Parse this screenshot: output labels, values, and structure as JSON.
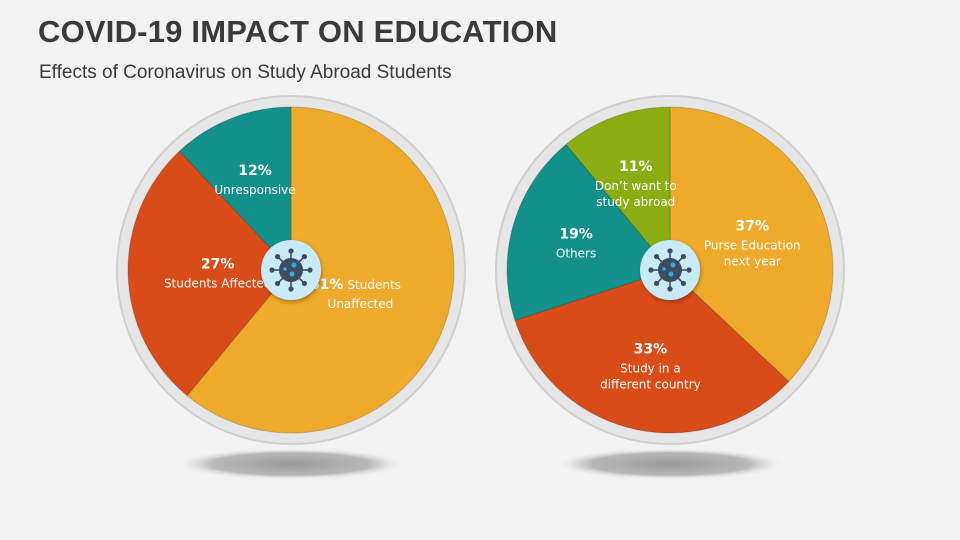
{
  "header": {
    "title": "COVID-19 IMPACT ON EDUCATION",
    "subtitle": "Effects of Coronavirus on Study Abroad Students"
  },
  "center_icon": "virus-icon",
  "chart_data": [
    {
      "type": "pie",
      "start": "top",
      "direction": "clockwise",
      "slices": [
        {
          "value": 61,
          "pct_label": "61%",
          "label": "Students Unaffected",
          "lines": [
            "Students",
            "Unaffected"
          ],
          "color": "#eeaa2a"
        },
        {
          "value": 27,
          "pct_label": "27%",
          "label": "Students Affected",
          "lines": [
            "Students Affected"
          ],
          "color": "#d94c1a"
        },
        {
          "value": 12,
          "pct_label": "12%",
          "label": "Unresponsive",
          "lines": [
            "Unresponsive"
          ],
          "color": "#12918a"
        }
      ]
    },
    {
      "type": "pie",
      "start": "top",
      "direction": "clockwise",
      "slices": [
        {
          "value": 37,
          "pct_label": "37%",
          "label": "Purse Education next year",
          "lines": [
            "Purse Education",
            "next year"
          ],
          "color": "#eeaa2a"
        },
        {
          "value": 33,
          "pct_label": "33%",
          "label": "Study in a different country",
          "lines": [
            "Study in a",
            "different country"
          ],
          "color": "#d94c1a"
        },
        {
          "value": 19,
          "pct_label": "19%",
          "label": "Others",
          "lines": [
            "Others"
          ],
          "color": "#12918a"
        },
        {
          "value": 11,
          "pct_label": "11%",
          "label": "Don't want to study abroad",
          "lines": [
            "Don’t want to",
            "study abroad"
          ],
          "color": "#8aad12"
        }
      ]
    }
  ]
}
